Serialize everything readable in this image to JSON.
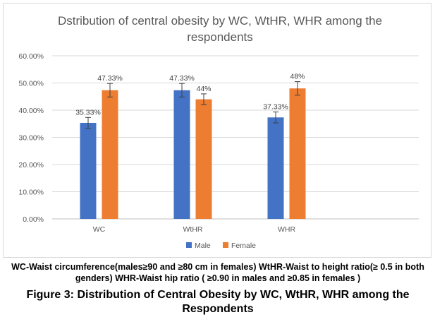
{
  "chart_data": {
    "type": "bar",
    "title": "Dstribution of central obesity by WC, WtHR, WHR among the respondents",
    "title_lines": [
      "Dstribution of central obesity by WC, WtHR, WHR among the",
      "respondents"
    ],
    "categories": [
      "WC",
      "WtHR",
      "WHR"
    ],
    "series": [
      {
        "name": "Male",
        "values": [
          35.33,
          47.33,
          37.33
        ],
        "labels": [
          "35.33%",
          "47.33%",
          "37.33%"
        ],
        "color": "#4472c4",
        "error": [
          2,
          2.5,
          2
        ]
      },
      {
        "name": "Female",
        "values": [
          47.33,
          44,
          48
        ],
        "labels": [
          "47.33%",
          "44%",
          "48%"
        ],
        "color": "#ed7d31",
        "error": [
          2.5,
          2,
          2.5
        ]
      }
    ],
    "ylim": [
      0,
      60
    ],
    "yticks": [
      "0.00%",
      "10.00%",
      "20.00%",
      "30.00%",
      "40.00%",
      "50.00%",
      "60.00%"
    ],
    "ytick_values": [
      0,
      10,
      20,
      30,
      40,
      50,
      60
    ],
    "grid": true,
    "legend_position": "bottom",
    "xlabel": "",
    "ylabel": ""
  },
  "caption": {
    "note": "WC-Waist circumference(males≥90 and  ≥80  cm in females)  WtHR-Waist to height ratio(≥ 0.5 in both genders) WHR-Waist hip ratio  ( ≥0.90 in males and ≥0.85 in females )",
    "figure": "Figure 3: Distribution of Central Obesity by WC, WtHR, WHR among the Respondents"
  }
}
